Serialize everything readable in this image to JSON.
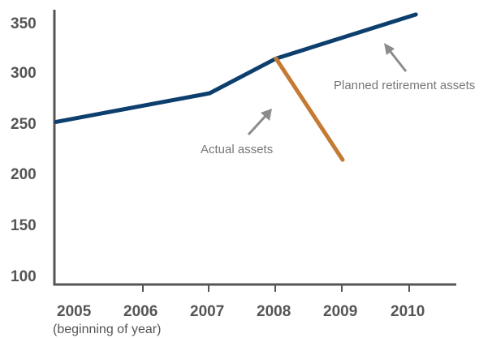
{
  "chart_data": {
    "type": "line",
    "title": "",
    "xlabel": "(beginning of year)",
    "ylabel": "",
    "x_categories": [
      "2005",
      "2006",
      "2007",
      "2008",
      "2009",
      "2010"
    ],
    "y_ticks": [
      "350",
      "300",
      "250",
      "200",
      "150",
      "100"
    ],
    "ylim": [
      100,
      350
    ],
    "series": [
      {
        "name": "Planned retirement assets",
        "color": "#0d3f6e",
        "points": [
          {
            "x": 2005.0,
            "y": 251
          },
          {
            "x": 2007.0,
            "y": 279
          },
          {
            "x": 2008.0,
            "y": 313
          },
          {
            "x": 2010.1,
            "y": 356
          }
        ]
      },
      {
        "name": "Actual assets",
        "color": "#c47a33",
        "points": [
          {
            "x": 2008.0,
            "y": 313
          },
          {
            "x": 2009.0,
            "y": 214
          }
        ]
      }
    ],
    "annotations": [
      {
        "text": "Planned retirement assets",
        "series": "Planned retirement assets"
      },
      {
        "text": "Actual assets",
        "series": "Actual assets"
      }
    ],
    "grid": false,
    "axis_color": "#555555",
    "arrow_color": "#8c8c8c"
  }
}
